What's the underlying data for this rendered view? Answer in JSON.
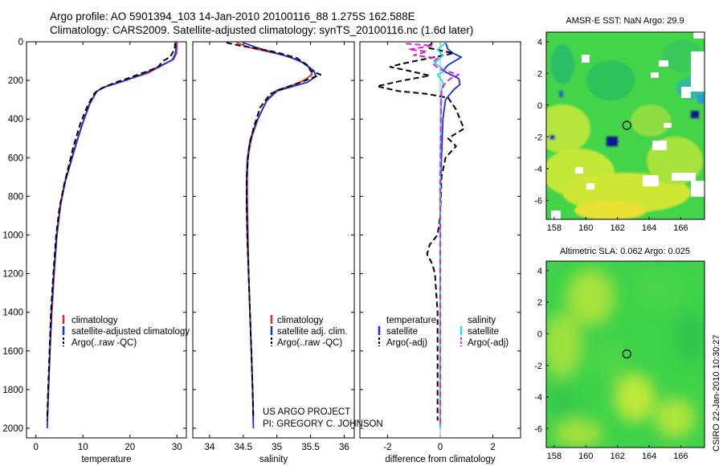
{
  "header": {
    "line1": "Argo profile: AO 5901394_103 14-Jan-2010 20100116_88 1.275S 162.588E",
    "line2": "Climatology: CARS2009. Satellite-adjusted climatology: synTS_20100116.nc (1.6d later)"
  },
  "credit": {
    "line1": "US ARGO PROJECT",
    "line2": "PI: GREGORY C. JOHNSON",
    "side": "CSIRO 22-Jan-2010 10:30:27"
  },
  "colors": {
    "climatology": "#e8281e",
    "satellite": "#1430d8",
    "argo": "#000000",
    "sal_satellite": "#20e0e0",
    "sal_argo": "#e020e0"
  },
  "chart_data": [
    {
      "id": "temperature",
      "type": "line",
      "xlabel": "temperature",
      "ylabel": "",
      "xlim": [
        -2,
        32
      ],
      "ylim": [
        2050,
        0
      ],
      "xticks": [
        0,
        10,
        20,
        30
      ],
      "yticks": [
        0,
        200,
        400,
        600,
        800,
        1000,
        1200,
        1400,
        1600,
        1800,
        2000
      ],
      "legend": [
        "climatology",
        "satellite-adjusted climatology",
        "Argo(..raw -QC)"
      ],
      "series": [
        {
          "name": "climatology",
          "style": "solid",
          "color_key": "climatology",
          "points": [
            [
              30.0,
              5
            ],
            [
              29.9,
              60
            ],
            [
              29.3,
              90
            ],
            [
              24,
              160
            ],
            [
              19,
              200
            ],
            [
              15,
              230
            ],
            [
              13,
              255
            ],
            [
              11.5,
              320
            ],
            [
              10,
              420
            ],
            [
              8.7,
              520
            ],
            [
              7.5,
              620
            ],
            [
              6.3,
              720
            ],
            [
              5.3,
              840
            ],
            [
              4.5,
              1000
            ],
            [
              3.9,
              1200
            ],
            [
              3.4,
              1400
            ],
            [
              3.0,
              1600
            ],
            [
              2.7,
              1800
            ],
            [
              2.45,
              1950
            ]
          ]
        },
        {
          "name": "satellite-adjusted climatology",
          "style": "solid",
          "color_key": "satellite",
          "points": [
            [
              29.8,
              5
            ],
            [
              29.7,
              60
            ],
            [
              29.0,
              95
            ],
            [
              23,
              165
            ],
            [
              18.5,
              205
            ],
            [
              14.5,
              235
            ],
            [
              12.9,
              258
            ],
            [
              11.4,
              322
            ],
            [
              9.9,
              422
            ],
            [
              8.6,
              522
            ],
            [
              7.4,
              622
            ],
            [
              6.2,
              722
            ],
            [
              5.2,
              842
            ],
            [
              4.4,
              1002
            ],
            [
              3.8,
              1202
            ],
            [
              3.3,
              1402
            ],
            [
              2.95,
              1602
            ],
            [
              2.65,
              1802
            ],
            [
              2.4,
              2000
            ]
          ]
        },
        {
          "name": "Argo(..raw -QC)",
          "style": "dash",
          "color_key": "argo",
          "points": [
            [
              29.6,
              5
            ],
            [
              29.5,
              40
            ],
            [
              28.5,
              80
            ],
            [
              27,
              100
            ],
            [
              26,
              130
            ],
            [
              24,
              150
            ],
            [
              20,
              185
            ],
            [
              17,
              210
            ],
            [
              14,
              240
            ],
            [
              12.5,
              265
            ],
            [
              11,
              330
            ],
            [
              9.5,
              420
            ],
            [
              8,
              540
            ],
            [
              7,
              640
            ],
            [
              6.0,
              740
            ],
            [
              5.0,
              860
            ],
            [
              4.3,
              1000
            ],
            [
              3.7,
              1200
            ],
            [
              3.2,
              1400
            ],
            [
              2.9,
              1600
            ],
            [
              2.6,
              1800
            ],
            [
              2.4,
              1960
            ]
          ]
        }
      ]
    },
    {
      "id": "salinity",
      "type": "line",
      "xlabel": "salinity",
      "ylabel": "",
      "xlim": [
        33.75,
        36.15
      ],
      "ylim": [
        2050,
        0
      ],
      "xticks": [
        34,
        34.5,
        35,
        35.5,
        36
      ],
      "yticks": [
        0,
        200,
        400,
        600,
        800,
        1000,
        1200,
        1400,
        1600,
        1800,
        2000
      ],
      "legend": [
        "climatology",
        "satellite adj. clim.",
        "Argo(..raw -QC)"
      ],
      "series": [
        {
          "name": "climatology",
          "style": "solid",
          "color_key": "climatology",
          "points": [
            [
              34.4,
              5
            ],
            [
              34.6,
              30
            ],
            [
              34.85,
              50
            ],
            [
              35.1,
              70
            ],
            [
              35.35,
              100
            ],
            [
              35.5,
              140
            ],
            [
              35.52,
              170
            ],
            [
              35.4,
              200
            ],
            [
              35.2,
              230
            ],
            [
              35.0,
              250
            ],
            [
              34.85,
              300
            ],
            [
              34.72,
              400
            ],
            [
              34.62,
              500
            ],
            [
              34.57,
              600
            ],
            [
              34.56,
              700
            ],
            [
              34.56,
              800
            ],
            [
              34.57,
              1000
            ],
            [
              34.58,
              1200
            ],
            [
              34.6,
              1400
            ],
            [
              34.62,
              1600
            ],
            [
              34.64,
              1800
            ],
            [
              34.65,
              1960
            ]
          ]
        },
        {
          "name": "satellite adj. clim.",
          "style": "solid",
          "color_key": "satellite",
          "points": [
            [
              34.5,
              5
            ],
            [
              34.7,
              30
            ],
            [
              34.95,
              55
            ],
            [
              35.2,
              80
            ],
            [
              35.4,
              110
            ],
            [
              35.55,
              150
            ],
            [
              35.58,
              180
            ],
            [
              35.45,
              210
            ],
            [
              35.2,
              235
            ],
            [
              35.0,
              255
            ],
            [
              34.85,
              305
            ],
            [
              34.7,
              410
            ],
            [
              34.6,
              510
            ],
            [
              34.56,
              610
            ],
            [
              34.55,
              710
            ],
            [
              34.55,
              810
            ],
            [
              34.56,
              1010
            ],
            [
              34.58,
              1210
            ],
            [
              34.6,
              1410
            ],
            [
              34.62,
              1610
            ],
            [
              34.64,
              1810
            ],
            [
              34.65,
              2000
            ]
          ]
        },
        {
          "name": "Argo(..raw -QC)",
          "style": "dash",
          "color_key": "argo",
          "points": [
            [
              34.25,
              5
            ],
            [
              34.45,
              20
            ],
            [
              34.7,
              35
            ],
            [
              35.0,
              55
            ],
            [
              35.3,
              85
            ],
            [
              35.45,
              120
            ],
            [
              35.5,
              150
            ],
            [
              35.65,
              170
            ],
            [
              35.5,
              190
            ],
            [
              35.35,
              210
            ],
            [
              35.1,
              240
            ],
            [
              34.9,
              270
            ],
            [
              34.75,
              340
            ],
            [
              34.65,
              450
            ],
            [
              34.58,
              560
            ],
            [
              34.55,
              700
            ],
            [
              34.55,
              850
            ],
            [
              34.56,
              1000
            ],
            [
              34.58,
              1200
            ],
            [
              34.6,
              1400
            ],
            [
              34.62,
              1600
            ],
            [
              34.64,
              1800
            ],
            [
              34.65,
              1950
            ]
          ]
        }
      ]
    },
    {
      "id": "difference",
      "type": "line",
      "xlabel": "difference from climatology",
      "ylabel": "",
      "xlim": [
        -3.05,
        3.05
      ],
      "ylim": [
        2050,
        0
      ],
      "xticks": [
        -2,
        0,
        2
      ],
      "yticks": [
        0,
        200,
        400,
        600,
        800,
        1000,
        1200,
        1400,
        1600,
        1800,
        2000
      ],
      "legend_titles": [
        "temperature",
        "salinity"
      ],
      "legend": [
        "satellite",
        "Argo(-adj)",
        "satellite",
        "Argo(-adj)"
      ],
      "series": [
        {
          "name": "temperature satellite",
          "style": "solid",
          "color_key": "satellite",
          "points": [
            [
              0.2,
              5
            ],
            [
              0.3,
              40
            ],
            [
              0.5,
              60
            ],
            [
              0.8,
              80
            ],
            [
              0.3,
              120
            ],
            [
              0.1,
              150
            ],
            [
              0.4,
              170
            ],
            [
              0.7,
              190
            ],
            [
              0.75,
              220
            ],
            [
              0.5,
              250
            ],
            [
              0.2,
              300
            ],
            [
              0.1,
              400
            ],
            [
              0.05,
              600
            ],
            [
              0.0,
              800
            ],
            [
              0.0,
              1200
            ],
            [
              0.0,
              1600
            ],
            [
              0.0,
              2000
            ]
          ]
        },
        {
          "name": "temperature Argo(-adj)",
          "style": "dash",
          "color_key": "argo",
          "points": [
            [
              -0.3,
              5
            ],
            [
              -0.5,
              30
            ],
            [
              0.5,
              60
            ],
            [
              -0.6,
              90
            ],
            [
              -1.5,
              115
            ],
            [
              -1.9,
              130
            ],
            [
              -1.2,
              150
            ],
            [
              -0.4,
              175
            ],
            [
              -1.4,
              200
            ],
            [
              -2.4,
              230
            ],
            [
              -1.6,
              255
            ],
            [
              -0.5,
              270
            ],
            [
              0.3,
              290
            ],
            [
              0.6,
              350
            ],
            [
              0.9,
              450
            ],
            [
              0.3,
              500
            ],
            [
              0.6,
              540
            ],
            [
              0.2,
              600
            ],
            [
              0.05,
              700
            ],
            [
              0.0,
              900
            ],
            [
              -0.1,
              1000
            ],
            [
              -0.4,
              1050
            ],
            [
              -0.5,
              1100
            ],
            [
              -0.3,
              1150
            ],
            [
              -0.2,
              1200
            ],
            [
              -0.1,
              1400
            ],
            [
              -0.1,
              1600
            ],
            [
              -0.1,
              1800
            ],
            [
              -0.1,
              1960
            ]
          ]
        },
        {
          "name": "salinity satellite",
          "style": "solid",
          "color_key": "sal_satellite",
          "points": [
            [
              0.2,
              5
            ],
            [
              -0.1,
              40
            ],
            [
              0.1,
              70
            ],
            [
              -0.2,
              110
            ],
            [
              0.2,
              150
            ],
            [
              -0.1,
              170
            ],
            [
              0.1,
              210
            ],
            [
              0.05,
              260
            ],
            [
              0.02,
              400
            ],
            [
              0.01,
              700
            ],
            [
              0.0,
              1000
            ],
            [
              0.0,
              1500
            ],
            [
              0.0,
              2000
            ]
          ]
        },
        {
          "name": "salinity Argo(-adj)",
          "style": "dash",
          "color_key": "sal_argo",
          "points": [
            [
              -1.3,
              10
            ],
            [
              -0.3,
              20
            ],
            [
              -1.2,
              40
            ],
            [
              -0.5,
              50
            ],
            [
              -1.0,
              70
            ],
            [
              -0.1,
              85
            ],
            [
              -0.3,
              110
            ],
            [
              -0.05,
              140
            ],
            [
              0.7,
              170
            ],
            [
              0.4,
              190
            ],
            [
              0.2,
              210
            ],
            [
              0.05,
              250
            ],
            [
              0.02,
              400
            ],
            [
              0.0,
              700
            ],
            [
              0.0,
              1000
            ],
            [
              0.0,
              1500
            ],
            [
              0.0,
              1980
            ]
          ]
        }
      ]
    },
    {
      "id": "sst-map",
      "type": "heatmap",
      "title": "AMSR-E SST: NaN Argo: 29.9",
      "xlim": [
        157.5,
        167.5
      ],
      "ylim": [
        -7.2,
        4.6
      ],
      "xticks": [
        158,
        160,
        162,
        164,
        166
      ],
      "yticks": [
        4,
        2,
        0,
        -2,
        -4,
        -6
      ],
      "marker": [
        162.59,
        -1.275
      ]
    },
    {
      "id": "sla-map",
      "type": "heatmap",
      "title": "Altimetric SLA: 0.062 Argo: 0.025",
      "xlim": [
        157.5,
        167.5
      ],
      "ylim": [
        -7.2,
        4.6
      ],
      "xticks": [
        158,
        160,
        162,
        164,
        166
      ],
      "yticks": [
        4,
        2,
        0,
        -2,
        -4,
        -6
      ],
      "marker": [
        162.59,
        -1.275
      ]
    }
  ]
}
